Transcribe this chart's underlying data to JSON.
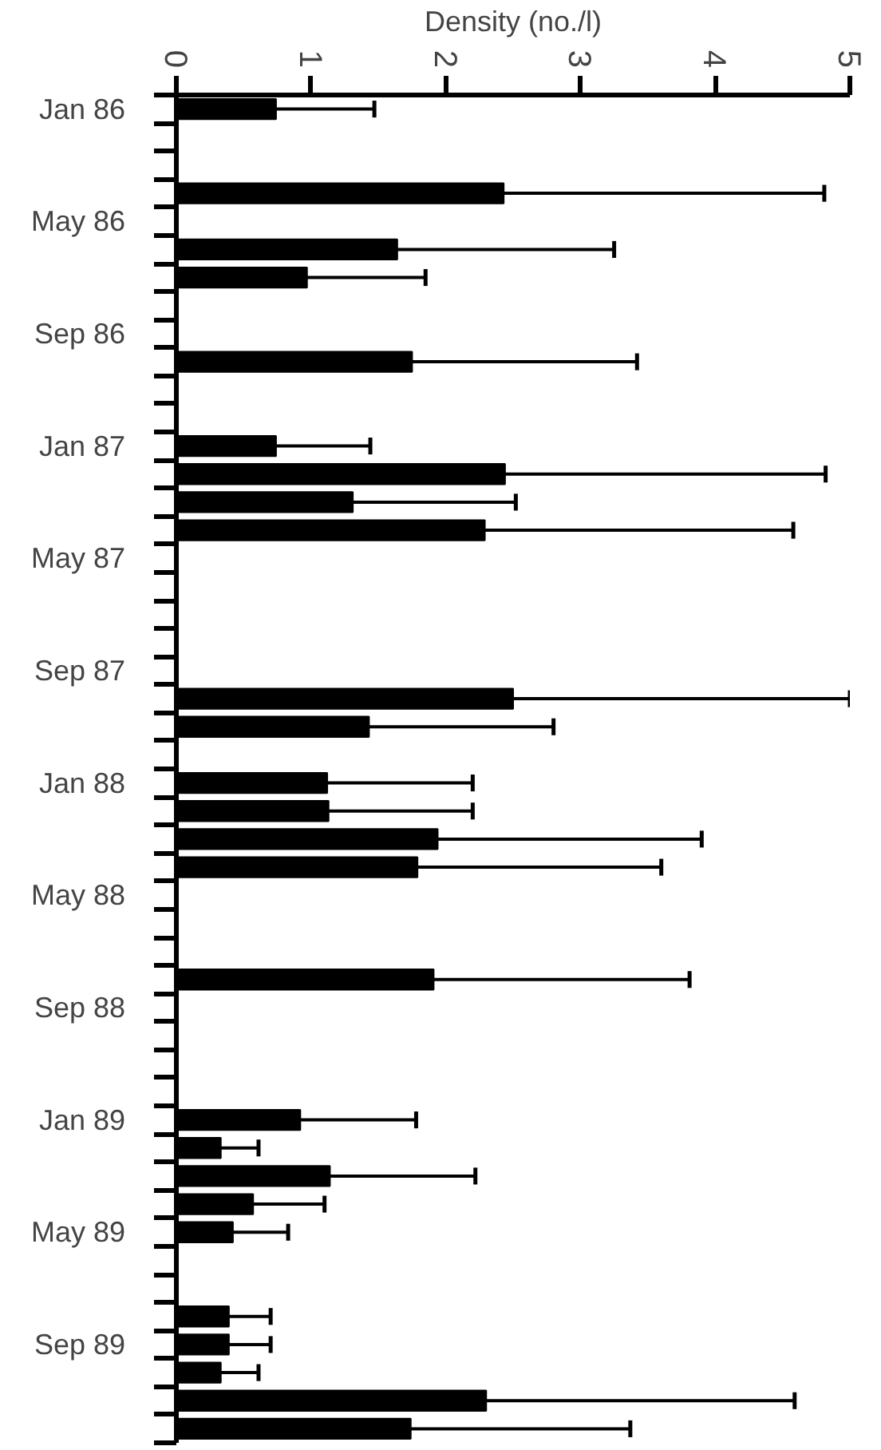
{
  "chart_data": {
    "type": "bar",
    "orientation": "horizontal",
    "xlabel": "Density (no./l)",
    "categories": [
      "Jan 86",
      null,
      null,
      null,
      "May 86",
      null,
      null,
      null,
      "Sep 86",
      null,
      null,
      null,
      "Jan 87",
      null,
      null,
      null,
      "May 87",
      null,
      null,
      null,
      "Sep 87",
      null,
      null,
      null,
      "Jan 88",
      null,
      null,
      null,
      "May 88",
      null,
      null,
      null,
      "Sep 88",
      null,
      null,
      null,
      "Jan 89",
      null,
      null,
      null,
      "May 89",
      null,
      null,
      null,
      "Sep 89",
      null,
      null,
      null
    ],
    "values": [
      0.74,
      null,
      null,
      2.43,
      null,
      1.64,
      0.97,
      null,
      null,
      1.75,
      null,
      null,
      0.74,
      2.44,
      1.31,
      2.29,
      null,
      null,
      null,
      null,
      null,
      2.5,
      1.43,
      null,
      1.12,
      1.13,
      1.94,
      1.79,
      null,
      null,
      null,
      1.91,
      null,
      null,
      null,
      null,
      0.92,
      0.33,
      1.14,
      0.57,
      0.42,
      null,
      null,
      0.39,
      0.39,
      0.33,
      2.3,
      1.74
    ],
    "errors": [
      [
        0.74,
        1.47
      ],
      null,
      null,
      [
        2.43,
        4.81
      ],
      null,
      [
        1.64,
        3.25
      ],
      [
        0.97,
        1.85
      ],
      null,
      null,
      [
        1.75,
        3.42
      ],
      null,
      null,
      [
        0.74,
        1.44
      ],
      [
        2.44,
        4.82
      ],
      [
        1.31,
        2.52
      ],
      [
        2.29,
        4.58
      ],
      null,
      null,
      null,
      null,
      null,
      [
        2.5,
        5.0
      ],
      [
        1.43,
        2.8
      ],
      null,
      [
        1.12,
        2.2
      ],
      [
        1.13,
        2.2
      ],
      [
        1.94,
        3.9
      ],
      [
        1.79,
        3.6
      ],
      null,
      null,
      null,
      [
        1.91,
        3.81
      ],
      null,
      null,
      null,
      null,
      [
        0.92,
        1.78
      ],
      [
        0.33,
        0.61
      ],
      [
        1.14,
        2.22
      ],
      [
        0.57,
        1.1
      ],
      [
        0.42,
        0.83
      ],
      null,
      null,
      [
        0.39,
        0.7
      ],
      [
        0.39,
        0.7
      ],
      [
        0.33,
        0.61
      ],
      [
        2.3,
        4.59
      ],
      [
        1.74,
        3.37
      ]
    ],
    "color": "#000000",
    "xlim": [
      0,
      5
    ],
    "xticks": [
      0,
      1,
      2,
      3,
      4,
      5
    ],
    "grid": false
  }
}
